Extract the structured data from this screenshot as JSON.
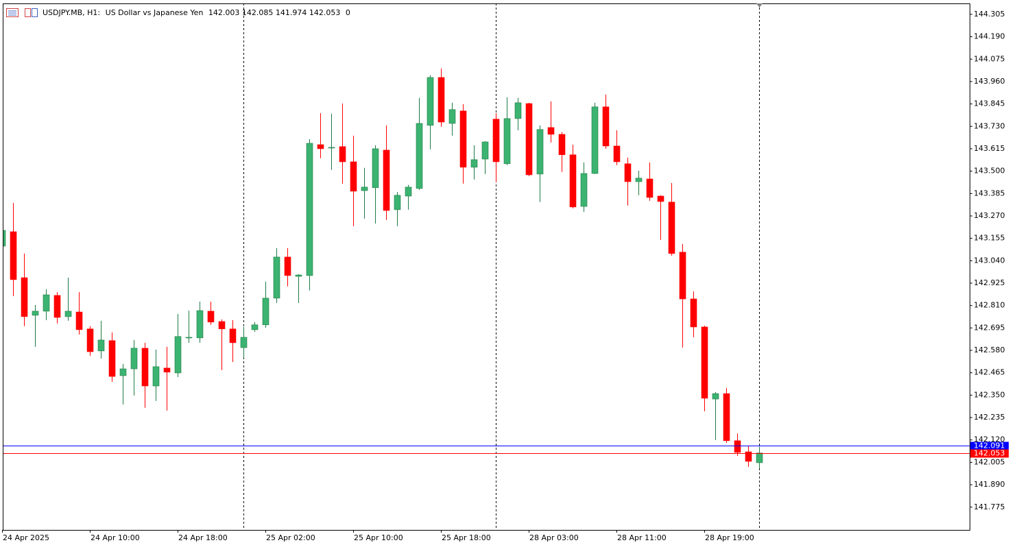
{
  "chart_data": {
    "type": "candlestick",
    "symbol": "USDJPY.MB, H1:",
    "description": "US Dollar vs Japanese Yen",
    "volume": 0,
    "up_color": "#3cb371",
    "up_wick_color": "#1e7a44",
    "down_color": "#ff0000",
    "categories": [
      "24 Apr 2025",
      null,
      null,
      null,
      null,
      null,
      null,
      null,
      "24 Apr 10:00",
      null,
      null,
      null,
      null,
      null,
      null,
      null,
      "24 Apr 18:00",
      null,
      null,
      null,
      null,
      null,
      null,
      null,
      "25 Apr 02:00",
      null,
      null,
      null,
      null,
      null,
      null,
      null,
      "25 Apr 10:00",
      null,
      null,
      null,
      null,
      null,
      null,
      null,
      "25 Apr 18:00",
      null,
      null,
      null,
      null,
      null,
      null,
      null,
      "28 Apr 03:00",
      null,
      null,
      null,
      null,
      null,
      null,
      null,
      "28 Apr 11:00",
      null,
      null,
      null,
      null,
      null,
      null,
      null,
      "28 Apr 19:00",
      null,
      null,
      null,
      null,
      null
    ],
    "open": [
      143.115,
      143.189,
      142.953,
      142.76,
      142.781,
      142.862,
      142.753,
      142.777,
      142.69,
      142.577,
      142.63,
      142.45,
      142.485,
      142.591,
      142.397,
      142.489,
      142.464,
      142.644,
      142.644,
      142.781,
      142.728,
      142.69,
      142.594,
      142.686,
      142.711,
      142.848,
      143.059,
      142.96,
      142.964,
      143.636,
      143.619,
      143.626,
      143.548,
      143.4,
      143.415,
      143.608,
      143.302,
      143.372,
      143.411,
      143.735,
      143.981,
      143.745,
      143.809,
      143.52,
      143.562,
      143.767,
      143.538,
      143.77,
      143.847,
      143.485,
      143.724,
      143.689,
      143.584,
      143.319,
      143.488,
      143.83,
      143.629,
      143.538,
      143.446,
      143.46,
      143.372,
      143.341,
      143.084,
      142.844,
      142.7,
      142.33,
      142.358,
      142.116,
      142.059,
      142.003
    ],
    "high": [
      143.203,
      143.337,
      143.077,
      142.813,
      142.894,
      142.879,
      142.953,
      142.879,
      142.704,
      142.732,
      142.672,
      142.51,
      142.633,
      142.619,
      142.584,
      142.598,
      142.767,
      142.784,
      142.83,
      142.83,
      142.739,
      142.735,
      142.7,
      142.725,
      142.932,
      143.105,
      143.105,
      142.971,
      143.664,
      143.798,
      143.795,
      143.847,
      143.682,
      143.517,
      143.633,
      143.735,
      143.393,
      143.429,
      143.876,
      143.992,
      144.027,
      143.851,
      143.844,
      143.633,
      143.654,
      143.798,
      143.879,
      143.876,
      143.851,
      143.735,
      143.858,
      143.7,
      143.636,
      143.545,
      143.851,
      143.893,
      143.71,
      143.569,
      143.502,
      143.545,
      143.376,
      143.439,
      143.126,
      142.883,
      142.707,
      142.366,
      142.387,
      142.154,
      142.091,
      142.085
    ],
    "low": [
      143.105,
      142.858,
      142.704,
      142.598,
      142.735,
      142.718,
      142.732,
      142.661,
      142.552,
      142.538,
      142.418,
      142.302,
      142.348,
      142.285,
      142.32,
      142.271,
      142.443,
      142.619,
      142.619,
      142.711,
      142.478,
      142.52,
      142.542,
      142.675,
      142.696,
      142.823,
      142.908,
      142.823,
      142.887,
      143.566,
      143.506,
      143.436,
      143.217,
      143.256,
      143.231,
      143.249,
      143.217,
      143.302,
      143.404,
      143.612,
      143.728,
      143.682,
      143.436,
      143.457,
      143.485,
      143.443,
      143.531,
      143.71,
      143.474,
      143.341,
      143.647,
      143.496,
      143.309,
      143.291,
      143.485,
      143.615,
      143.531,
      143.323,
      143.376,
      143.348,
      143.147,
      143.066,
      142.594,
      142.647,
      142.267,
      142.119,
      142.105,
      142.038,
      141.982,
      141.974
    ],
    "close": [
      143.196,
      142.943,
      142.753,
      142.781,
      142.865,
      142.749,
      142.781,
      142.686,
      142.573,
      142.633,
      142.446,
      142.485,
      142.591,
      142.397,
      142.496,
      142.468,
      142.651,
      142.647,
      142.784,
      142.725,
      142.69,
      142.619,
      142.647,
      142.711,
      142.848,
      143.059,
      142.964,
      142.967,
      143.643,
      143.615,
      143.622,
      143.548,
      143.397,
      143.418,
      143.615,
      143.298,
      143.376,
      143.418,
      143.745,
      143.981,
      143.752,
      143.816,
      143.52,
      143.559,
      143.65,
      143.548,
      143.77,
      143.851,
      143.481,
      143.714,
      143.689,
      143.584,
      143.316,
      143.488,
      143.83,
      143.629,
      143.548,
      143.446,
      143.464,
      143.365,
      143.344,
      143.077,
      142.844,
      142.7,
      142.334,
      142.358,
      142.116,
      142.056,
      142.01,
      142.053
    ],
    "ylim": [
      141.658,
      144.361
    ],
    "yticks": [
      144.305,
      {
        "value": 144.19,
        "label": "144.190"
      },
      144.075,
      {
        "value": 143.96,
        "label": "143.960"
      },
      143.845,
      {
        "value": 143.73,
        "label": "143.730"
      },
      143.615,
      {
        "value": 143.5,
        "label": "143.500"
      },
      143.385,
      {
        "value": 143.27,
        "label": "143.270"
      },
      143.155,
      {
        "value": 143.04,
        "label": "143.040"
      },
      142.925,
      {
        "value": 142.81,
        "label": "142.810"
      },
      142.695,
      {
        "value": 142.58,
        "label": "142.580"
      },
      142.465,
      {
        "value": 142.35,
        "label": "142.350"
      },
      142.235,
      {
        "value": 142.12,
        "label": "142.120"
      },
      142.005,
      {
        "value": 141.89,
        "label": "141.890"
      },
      141.775
    ],
    "ask_line": {
      "value": 142.091,
      "color": "#0000ff"
    },
    "bid_line": {
      "value": 142.053,
      "color": "#ff0000"
    }
  }
}
